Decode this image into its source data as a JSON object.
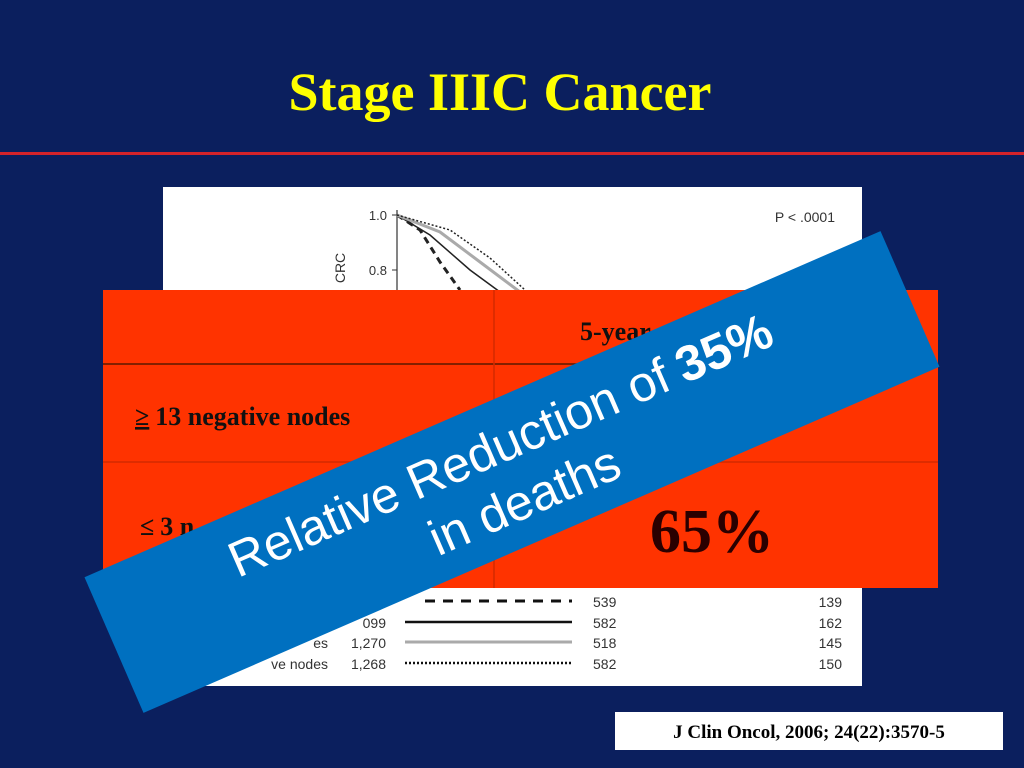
{
  "header": {
    "title": "Stage IIIC Cancer"
  },
  "figure": {
    "yticks": [
      "1.0",
      "0.8"
    ],
    "ylabel": "CRC",
    "pvalue": "P < .0001",
    "legend_rows": [
      {
        "label": "",
        "n": "",
        "a": "539",
        "b": "139"
      },
      {
        "label": "",
        "n": "099",
        "a": "582",
        "b": "162"
      },
      {
        "label": "es",
        "n": "1,270",
        "a": "518",
        "b": "145"
      },
      {
        "label": "ve nodes",
        "n": "1,268",
        "a": "582",
        "b": "150"
      }
    ]
  },
  "table": {
    "header": "5-year",
    "rows": [
      [
        "≥",
        "13 negative nodes"
      ],
      [
        "≤",
        "3 n"
      ]
    ],
    "value": "65%"
  },
  "banner": {
    "line1": "Relative Reduction of",
    "highlight": "35%",
    "line2": "in deaths"
  },
  "citation": "J Clin Oncol, 2006; 24(22):3570-5"
}
